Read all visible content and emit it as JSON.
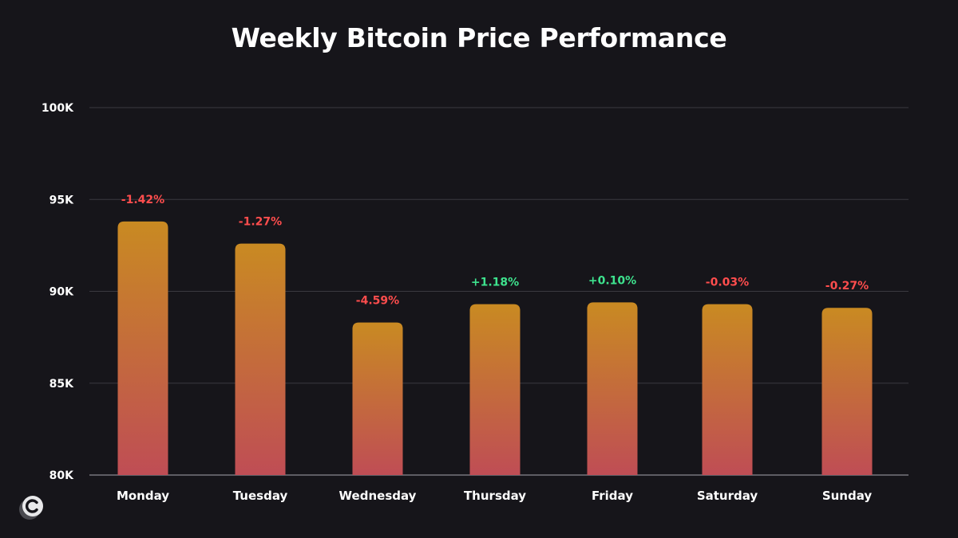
{
  "chart_data": {
    "type": "bar",
    "title": "Weekly Bitcoin Price Performance",
    "xlabel": "",
    "ylabel": "",
    "ylim": [
      80000,
      100000
    ],
    "yticks": [
      {
        "value": 80000,
        "label": "80K"
      },
      {
        "value": 85000,
        "label": "85K"
      },
      {
        "value": 90000,
        "label": "90K"
      },
      {
        "value": 95000,
        "label": "95K"
      },
      {
        "value": 100000,
        "label": "100K"
      }
    ],
    "grid": true,
    "categories": [
      "Monday",
      "Tuesday",
      "Wednesday",
      "Thursday",
      "Friday",
      "Saturday",
      "Sunday"
    ],
    "values": [
      93800,
      92600,
      88300,
      89300,
      89400,
      89300,
      89100
    ],
    "data_labels": [
      "-1.42%",
      "-1.27%",
      "-4.59%",
      "+1.18%",
      "+0.10%",
      "-0.03%",
      "-0.27%"
    ],
    "colors": {
      "bar_top": "#c98a22",
      "bar_bottom": "#bf4d55",
      "positive": "#3ee38e",
      "negative": "#ff4d4d",
      "grid": "#3a3940",
      "axis_text": "#ffffff",
      "background": "#16151a"
    }
  },
  "brand": {
    "logo_icon": "c-logo-icon",
    "logo_letter": "C"
  }
}
